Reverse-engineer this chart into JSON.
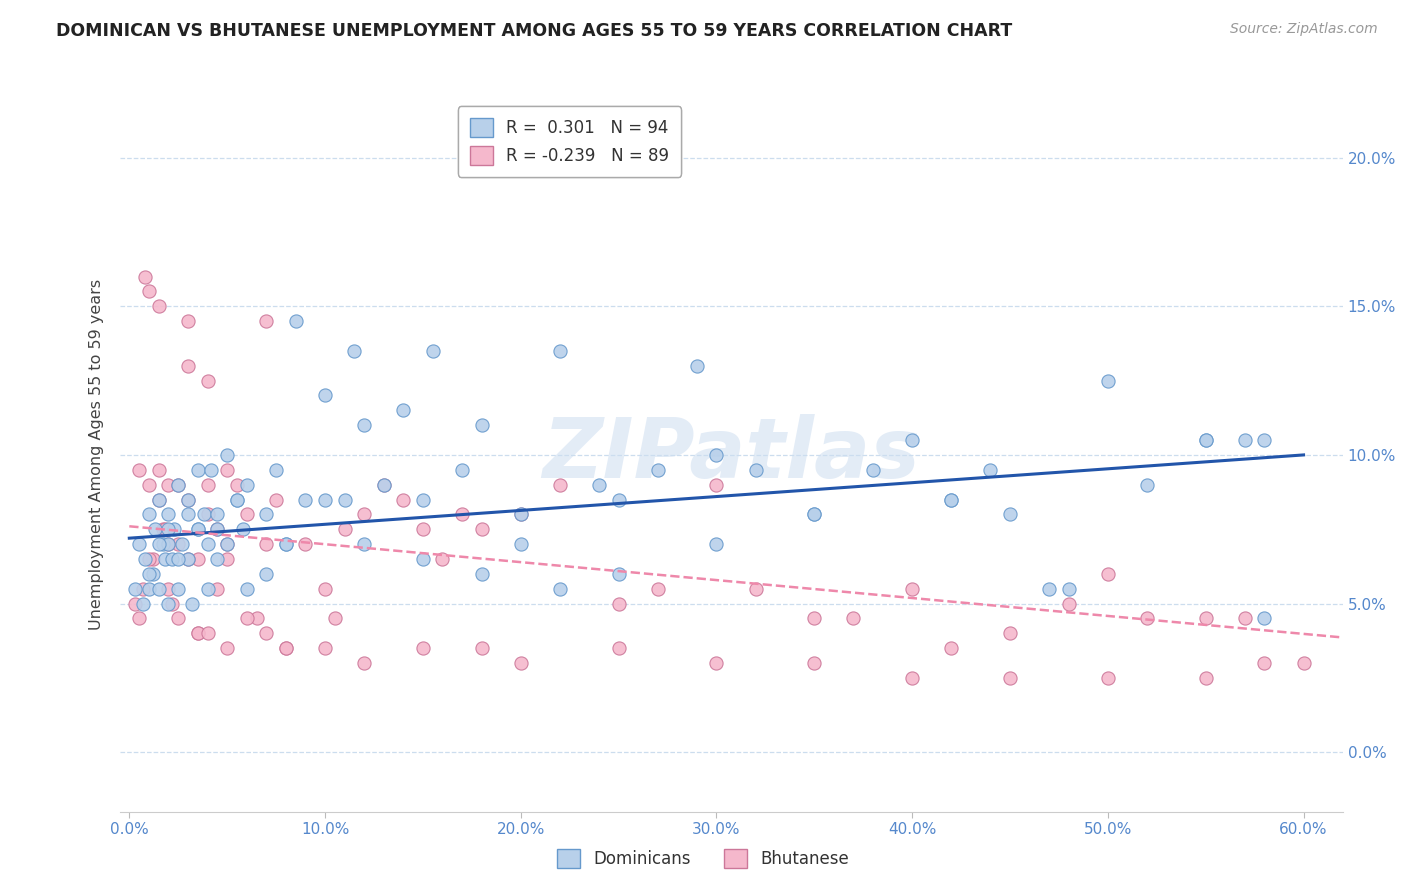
{
  "title": "DOMINICAN VS BHUTANESE UNEMPLOYMENT AMONG AGES 55 TO 59 YEARS CORRELATION CHART",
  "source": "Source: ZipAtlas.com",
  "xlabel_values": [
    0,
    10,
    20,
    30,
    40,
    50,
    60
  ],
  "ylabel_values": [
    0,
    5,
    10,
    15,
    20
  ],
  "xlim": [
    -0.5,
    62
  ],
  "ylim": [
    -2,
    22
  ],
  "dominican_color": "#b8d0ea",
  "dominican_edge_color": "#6699cc",
  "bhutanese_color": "#f5b8cc",
  "bhutanese_edge_color": "#cc7799",
  "dominican_line_color": "#2255aa",
  "bhutanese_line_color": "#ee88aa",
  "watermark": "ZIPatlas",
  "dominican_line_x0": 0,
  "dominican_line_x1": 60,
  "dominican_line_y0": 7.2,
  "dominican_line_y1": 10.0,
  "bhutanese_line_x0": 0,
  "bhutanese_line_x1": 63,
  "bhutanese_line_y0": 7.6,
  "bhutanese_line_y1": 3.8,
  "dominican_x": [
    0.3,
    0.5,
    0.7,
    0.8,
    1.0,
    1.0,
    1.2,
    1.3,
    1.5,
    1.5,
    1.7,
    1.8,
    2.0,
    2.0,
    2.0,
    2.2,
    2.3,
    2.5,
    2.5,
    2.7,
    3.0,
    3.0,
    3.2,
    3.5,
    3.5,
    3.8,
    4.0,
    4.0,
    4.2,
    4.5,
    4.5,
    5.0,
    5.0,
    5.5,
    5.8,
    6.0,
    6.0,
    7.0,
    7.5,
    8.0,
    8.5,
    9.0,
    10.0,
    11.0,
    11.5,
    12.0,
    13.0,
    14.0,
    15.0,
    15.5,
    17.0,
    18.0,
    20.0,
    22.0,
    24.0,
    25.0,
    27.0,
    29.0,
    30.0,
    32.0,
    35.0,
    38.0,
    40.0,
    42.0,
    44.0,
    45.0,
    48.0,
    50.0,
    52.0,
    55.0,
    57.0,
    58.0,
    1.0,
    1.5,
    2.0,
    2.5,
    3.0,
    3.5,
    4.5,
    5.5,
    7.0,
    8.0,
    10.0,
    12.0,
    15.0,
    18.0,
    20.0,
    22.0,
    25.0,
    30.0,
    35.0,
    42.0,
    47.0,
    55.0,
    58.0
  ],
  "dominican_y": [
    5.5,
    7.0,
    5.0,
    6.5,
    8.0,
    5.5,
    6.0,
    7.5,
    5.5,
    8.5,
    7.0,
    6.5,
    5.0,
    8.0,
    7.0,
    6.5,
    7.5,
    5.5,
    9.0,
    7.0,
    8.5,
    6.5,
    5.0,
    7.5,
    9.5,
    8.0,
    5.5,
    7.0,
    9.5,
    6.5,
    8.0,
    7.0,
    10.0,
    8.5,
    7.5,
    5.5,
    9.0,
    8.0,
    9.5,
    7.0,
    14.5,
    8.5,
    12.0,
    8.5,
    13.5,
    11.0,
    9.0,
    11.5,
    8.5,
    13.5,
    9.5,
    11.0,
    8.0,
    13.5,
    9.0,
    8.5,
    9.5,
    13.0,
    10.0,
    9.5,
    8.0,
    9.5,
    10.5,
    8.5,
    9.5,
    8.0,
    5.5,
    12.5,
    9.0,
    10.5,
    10.5,
    4.5,
    6.0,
    7.0,
    7.5,
    6.5,
    8.0,
    7.5,
    7.5,
    8.5,
    6.0,
    7.0,
    8.5,
    7.0,
    6.5,
    6.0,
    7.0,
    5.5,
    6.0,
    7.0,
    8.0,
    8.5,
    5.5,
    10.5,
    10.5
  ],
  "bhutanese_x": [
    0.3,
    0.5,
    0.7,
    0.8,
    1.0,
    1.0,
    1.2,
    1.5,
    1.5,
    1.7,
    1.8,
    2.0,
    2.0,
    2.2,
    2.5,
    2.5,
    3.0,
    3.0,
    3.5,
    3.5,
    4.0,
    4.0,
    4.5,
    4.5,
    5.0,
    5.0,
    5.5,
    6.0,
    6.5,
    7.0,
    7.5,
    8.0,
    9.0,
    10.0,
    10.5,
    11.0,
    12.0,
    13.0,
    14.0,
    15.0,
    16.0,
    17.0,
    18.0,
    20.0,
    22.0,
    25.0,
    27.0,
    30.0,
    32.0,
    35.0,
    37.0,
    40.0,
    42.0,
    45.0,
    48.0,
    50.0,
    52.0,
    55.0,
    57.0,
    0.5,
    1.0,
    1.5,
    2.0,
    2.5,
    3.0,
    3.5,
    4.0,
    5.0,
    6.0,
    7.0,
    8.0,
    10.0,
    12.0,
    15.0,
    18.0,
    20.0,
    25.0,
    30.0,
    35.0,
    40.0,
    45.0,
    50.0,
    55.0,
    58.0,
    60.0,
    3.0,
    4.0,
    5.0,
    7.0
  ],
  "bhutanese_y": [
    5.0,
    4.5,
    5.5,
    16.0,
    15.5,
    9.0,
    6.5,
    8.5,
    15.0,
    7.5,
    7.5,
    9.0,
    5.5,
    5.0,
    9.0,
    7.0,
    13.0,
    8.5,
    6.5,
    4.0,
    9.0,
    8.0,
    7.5,
    5.5,
    6.5,
    7.0,
    9.0,
    8.0,
    4.5,
    7.0,
    8.5,
    3.5,
    7.0,
    5.5,
    4.5,
    7.5,
    8.0,
    9.0,
    8.5,
    7.5,
    6.5,
    8.0,
    7.5,
    8.0,
    9.0,
    5.0,
    5.5,
    9.0,
    5.5,
    4.5,
    4.5,
    5.5,
    3.5,
    4.0,
    5.0,
    6.0,
    4.5,
    4.5,
    4.5,
    9.5,
    6.5,
    9.5,
    7.0,
    4.5,
    6.5,
    4.0,
    4.0,
    3.5,
    4.5,
    4.0,
    3.5,
    3.5,
    3.0,
    3.5,
    3.5,
    3.0,
    3.5,
    3.0,
    3.0,
    2.5,
    2.5,
    2.5,
    2.5,
    3.0,
    3.0,
    14.5,
    12.5,
    9.5,
    14.5
  ]
}
